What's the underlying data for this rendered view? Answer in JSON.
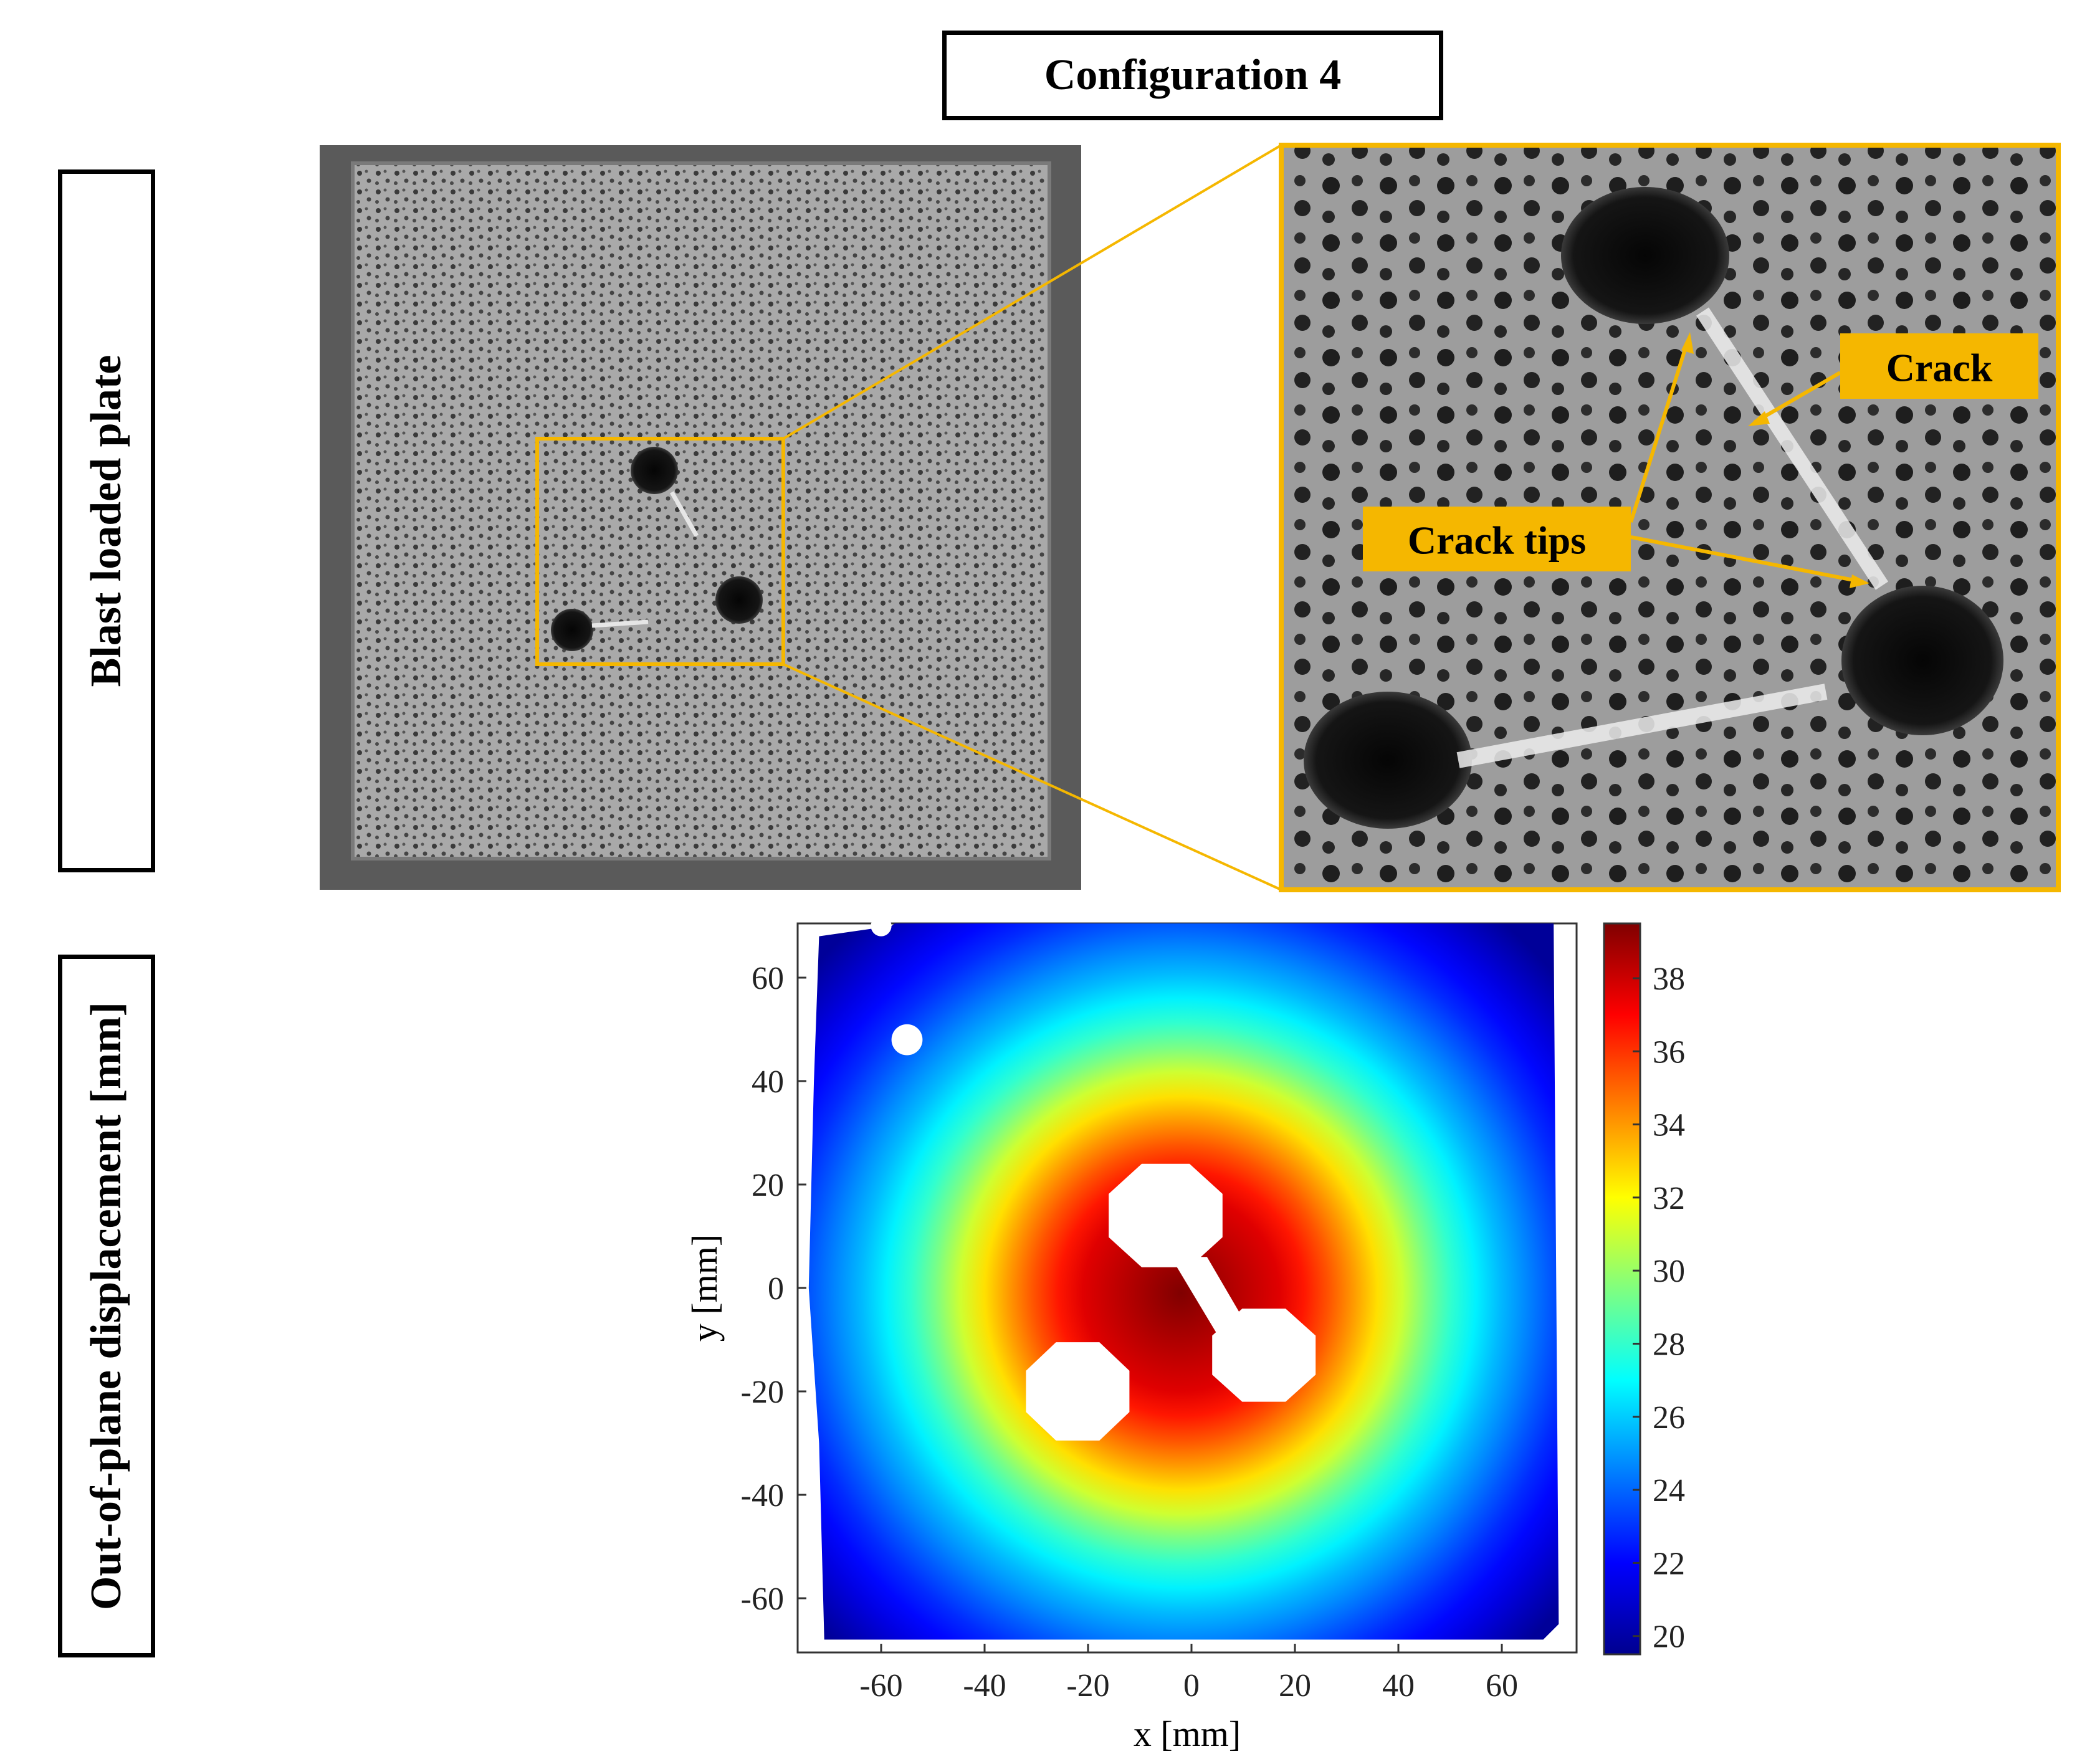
{
  "title": "Configuration 4",
  "row_labels": {
    "top": "Blast loaded plate",
    "bottom": "Out-of-plane displacement [mm]"
  },
  "annotations": {
    "crack": "Crack",
    "crack_tips": "Crack tips"
  },
  "colors": {
    "accent": "#f5b700",
    "colormap": "jet"
  },
  "chart_data": {
    "type": "heatmap",
    "description_values": "out-of-plane displacement field over the plate; maximum near center, decreasing radially",
    "xlabel": "x [mm]",
    "ylabel": "y [mm]",
    "xlim": [
      -75,
      75
    ],
    "ylim": [
      -75,
      75
    ],
    "x_ticks": [
      -60,
      -40,
      -20,
      0,
      20,
      40,
      60
    ],
    "y_ticks": [
      60,
      40,
      20,
      0,
      -20,
      -40,
      -60
    ],
    "colorbar": {
      "range": [
        19.5,
        39.5
      ],
      "ticks": [
        38,
        36,
        34,
        32,
        30,
        28,
        26,
        24,
        22,
        20
      ]
    },
    "field": {
      "center": [
        -2,
        -1
      ],
      "peak": 39.5,
      "radial_samples": [
        {
          "r": 0,
          "value": 39.5
        },
        {
          "r": 20,
          "value": 37.5
        },
        {
          "r": 30,
          "value": 35
        },
        {
          "r": 40,
          "value": 32
        },
        {
          "r": 50,
          "value": 28.5
        },
        {
          "r": 60,
          "value": 26
        },
        {
          "r": 75,
          "value": 23
        },
        {
          "r": 95,
          "value": 20
        }
      ]
    },
    "holes": [
      {
        "name": "hole-upper",
        "x": -5,
        "y": 14,
        "w": 22,
        "h": 20
      },
      {
        "name": "hole-right",
        "x": 14,
        "y": -13,
        "w": 20,
        "h": 18
      },
      {
        "name": "hole-left",
        "x": -22,
        "y": -20,
        "w": 20,
        "h": 19
      }
    ],
    "grid": false,
    "legend": "colorbar-right"
  }
}
